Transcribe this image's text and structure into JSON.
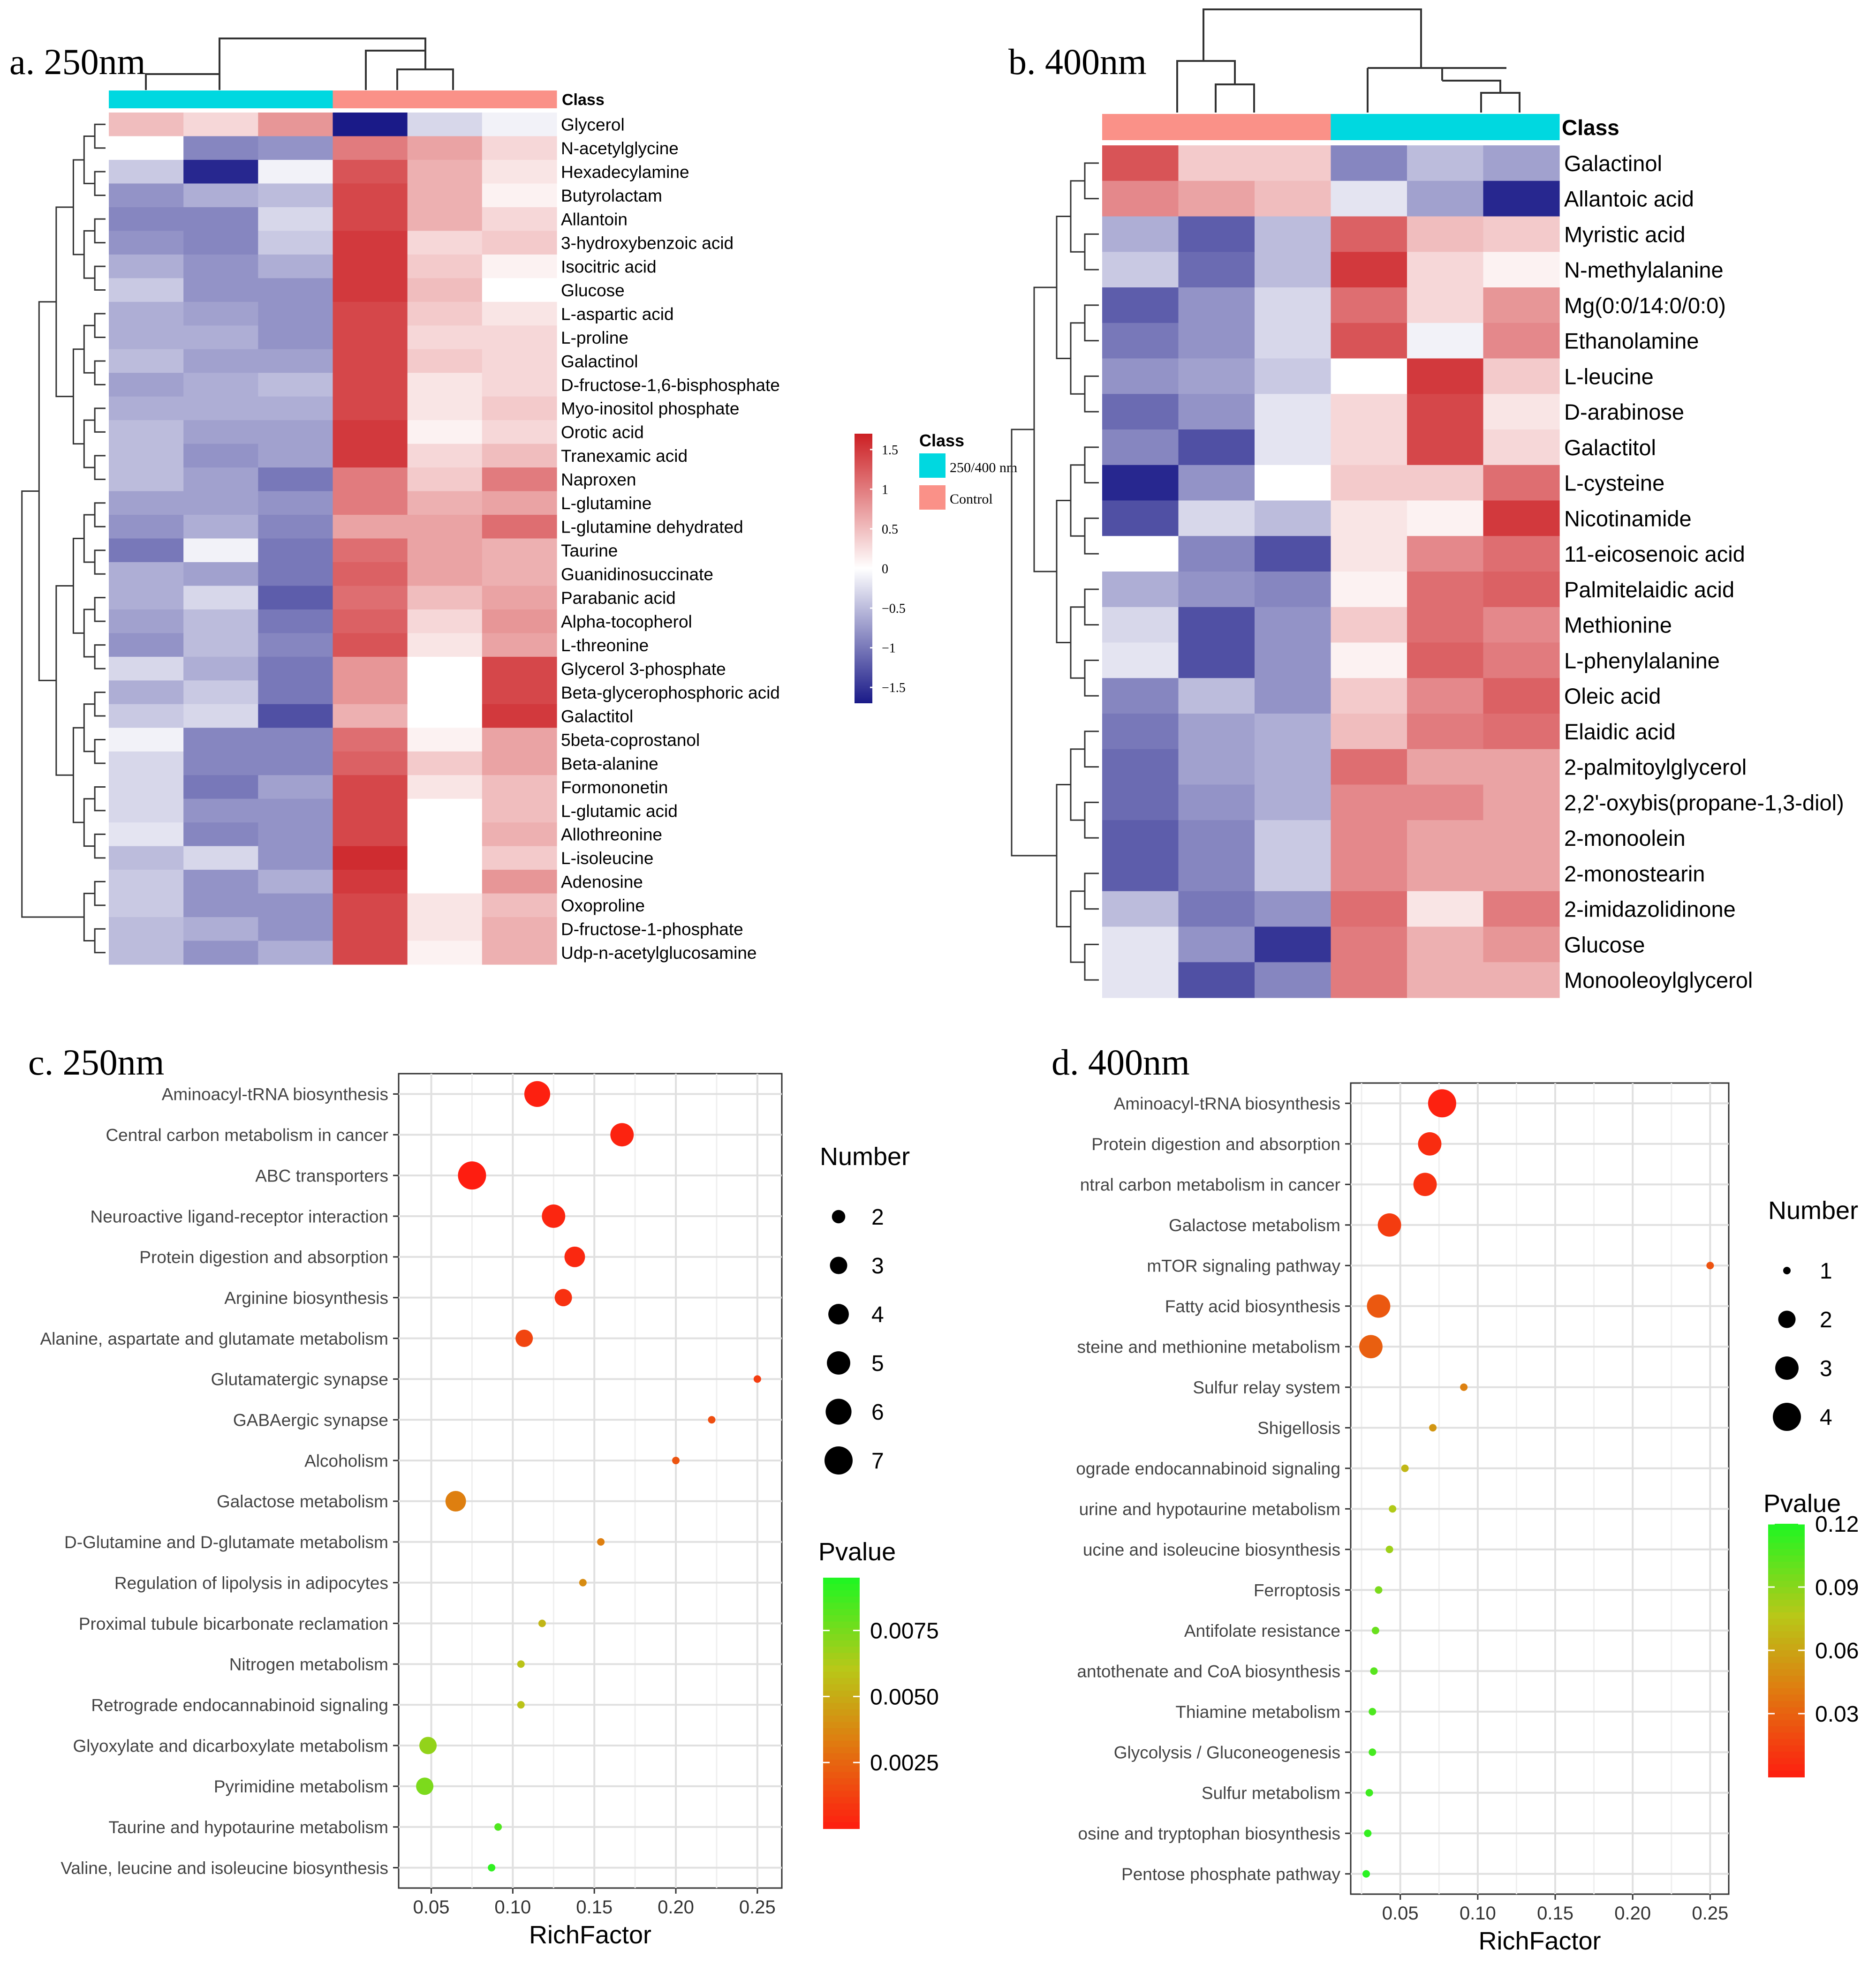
{
  "colors": {
    "accent_cyan": "#00d8e0",
    "accent_salmon": "#fa9188",
    "heat_low": "#1a1a88",
    "heat_mid": "#ffffff",
    "heat_high": "#cc1f23",
    "pv_low": "#ff2a1a",
    "pv_high": "#2af52a"
  },
  "chart_data": [
    {
      "id": "a",
      "type": "heatmap",
      "title": "a. 250nm",
      "class_label": "Class",
      "columns": [
        "col1",
        "col2",
        "col3",
        "col4",
        "col5",
        "col6"
      ],
      "column_class": [
        "250/400 nm",
        "250/400 nm",
        "250/400 nm",
        "Control",
        "Control",
        "Control"
      ],
      "legend": {
        "title": "Class",
        "entries": [
          "250/400 nm",
          "Control"
        ],
        "scale_ticks": [
          "1.5",
          "1",
          "0.5",
          "0",
          "−0.5",
          "−1",
          "−1.5"
        ],
        "scale_range": [
          -1.7,
          1.7
        ]
      },
      "rows": [
        "Glycerol",
        "N-acetylglycine",
        "Hexadecylamine",
        "Butyrolactam",
        "Allantoin",
        "3-hydroxybenzoic acid",
        "Isocitric acid",
        "Glucose",
        "L-aspartic acid",
        "L-proline",
        "Galactinol",
        "D-fructose-1,6-bisphosphate",
        "Myo-inositol phosphate",
        "Orotic acid",
        "Tranexamic acid",
        "Naproxen",
        "L-glutamine",
        "L-glutamine dehydrated",
        "Taurine",
        "Guanidinosuccinate",
        "Parabanic acid",
        "Alpha-tocopherol",
        "L-threonine",
        "Glycerol 3-phosphate",
        "Beta-glycerophosphoric acid",
        "Galactitol",
        "5beta-coprostanol",
        "Beta-alanine",
        "Formononetin",
        "L-glutamic acid",
        "Allothreonine",
        "L-isoleucine",
        "Adenosine",
        "Oxoproline",
        "D-fructose-1-phosphate",
        "Udp-n-acetylglucosamine"
      ],
      "values": [
        [
          0.5,
          0.3,
          0.8,
          -1.7,
          -0.3,
          -0.1
        ],
        [
          0.0,
          -0.9,
          -0.8,
          1.0,
          0.7,
          0.3
        ],
        [
          -0.4,
          -1.6,
          -0.1,
          1.3,
          0.6,
          0.2
        ],
        [
          -0.8,
          -0.6,
          -0.5,
          1.4,
          0.6,
          0.1
        ],
        [
          -0.9,
          -0.9,
          -0.3,
          1.4,
          0.6,
          0.3
        ],
        [
          -0.8,
          -0.9,
          -0.4,
          1.5,
          0.3,
          0.4
        ],
        [
          -0.6,
          -0.8,
          -0.6,
          1.5,
          0.4,
          0.1
        ],
        [
          -0.4,
          -0.8,
          -0.8,
          1.5,
          0.5,
          0.0
        ],
        [
          -0.6,
          -0.7,
          -0.8,
          1.4,
          0.4,
          0.2
        ],
        [
          -0.6,
          -0.6,
          -0.8,
          1.4,
          0.3,
          0.3
        ],
        [
          -0.5,
          -0.7,
          -0.7,
          1.4,
          0.4,
          0.3
        ],
        [
          -0.7,
          -0.6,
          -0.5,
          1.4,
          0.2,
          0.3
        ],
        [
          -0.6,
          -0.6,
          -0.6,
          1.4,
          0.2,
          0.4
        ],
        [
          -0.5,
          -0.7,
          -0.7,
          1.5,
          0.1,
          0.3
        ],
        [
          -0.5,
          -0.8,
          -0.7,
          1.5,
          0.3,
          0.5
        ],
        [
          -0.5,
          -0.7,
          -1.0,
          1.0,
          0.4,
          1.0
        ],
        [
          -0.7,
          -0.7,
          -0.8,
          1.0,
          0.6,
          0.7
        ],
        [
          -0.8,
          -0.6,
          -0.9,
          0.7,
          0.7,
          1.1
        ],
        [
          -1.0,
          -0.1,
          -1.0,
          1.1,
          0.7,
          0.6
        ],
        [
          -0.6,
          -0.7,
          -1.0,
          1.2,
          0.7,
          0.6
        ],
        [
          -0.6,
          -0.3,
          -1.2,
          1.1,
          0.5,
          0.7
        ],
        [
          -0.7,
          -0.5,
          -1.0,
          1.2,
          0.3,
          0.8
        ],
        [
          -0.8,
          -0.5,
          -0.9,
          1.3,
          0.2,
          0.7
        ],
        [
          -0.3,
          -0.6,
          -1.0,
          0.8,
          0.0,
          1.4
        ],
        [
          -0.6,
          -0.4,
          -1.0,
          0.8,
          0.0,
          1.4
        ],
        [
          -0.4,
          -0.3,
          -1.3,
          0.6,
          0.0,
          1.5
        ],
        [
          -0.1,
          -0.9,
          -0.9,
          1.1,
          0.1,
          0.7
        ],
        [
          -0.3,
          -0.9,
          -0.9,
          1.2,
          0.4,
          0.7
        ],
        [
          -0.3,
          -1.0,
          -0.7,
          1.4,
          0.2,
          0.5
        ],
        [
          -0.3,
          -0.8,
          -0.8,
          1.4,
          0.0,
          0.5
        ],
        [
          -0.2,
          -0.9,
          -0.8,
          1.4,
          0.0,
          0.6
        ],
        [
          -0.5,
          -0.3,
          -0.8,
          1.6,
          0.0,
          0.4
        ],
        [
          -0.4,
          -0.8,
          -0.6,
          1.5,
          0.0,
          0.8
        ],
        [
          -0.4,
          -0.8,
          -0.8,
          1.4,
          0.2,
          0.5
        ],
        [
          -0.5,
          -0.6,
          -0.8,
          1.4,
          0.2,
          0.6
        ],
        [
          -0.5,
          -0.8,
          -0.6,
          1.4,
          0.1,
          0.6
        ]
      ]
    },
    {
      "id": "b",
      "type": "heatmap",
      "title": "b. 400nm",
      "class_label": "Class",
      "columns": [
        "col1",
        "col2",
        "col3",
        "col4",
        "col5",
        "col6"
      ],
      "column_class": [
        "Control",
        "Control",
        "Control",
        "250/400 nm",
        "250/400 nm",
        "250/400 nm"
      ],
      "rows": [
        "Galactinol",
        "Allantoic acid",
        "Myristic acid",
        "N-methylalanine",
        "Mg(0:0/14:0/0:0)",
        "Ethanolamine",
        "L-leucine",
        "D-arabinose",
        "Galactitol",
        "L-cysteine",
        "Nicotinamide",
        "11-eicosenoic acid",
        "Palmitelaidic acid",
        "Methionine",
        "L-phenylalanine",
        "Oleic acid",
        "Elaidic acid",
        "2-palmitoylglycerol",
        "2,2'-oxybis(propane-1,3-diol)",
        "2-monoolein",
        "2-monostearin",
        "2-imidazolidinone",
        "Glucose",
        "Monooleoylglycerol"
      ],
      "values": [
        [
          1.3,
          0.4,
          0.4,
          -0.9,
          -0.5,
          -0.7
        ],
        [
          0.9,
          0.7,
          0.5,
          -0.2,
          -0.7,
          -1.6
        ],
        [
          -0.6,
          -1.2,
          -0.5,
          1.2,
          0.5,
          0.4
        ],
        [
          -0.4,
          -1.1,
          -0.5,
          1.5,
          0.3,
          0.1
        ],
        [
          -1.2,
          -0.8,
          -0.3,
          1.1,
          0.3,
          0.8
        ],
        [
          -1.0,
          -0.8,
          -0.3,
          1.3,
          -0.1,
          0.9
        ],
        [
          -0.8,
          -0.7,
          -0.4,
          0.0,
          1.5,
          0.4
        ],
        [
          -1.1,
          -0.8,
          -0.2,
          0.3,
          1.4,
          0.2
        ],
        [
          -0.9,
          -1.3,
          -0.2,
          0.3,
          1.4,
          0.3
        ],
        [
          -1.6,
          -0.8,
          0.0,
          0.4,
          0.4,
          1.1
        ],
        [
          -1.3,
          -0.3,
          -0.5,
          0.2,
          0.1,
          1.5
        ],
        [
          0.0,
          -0.9,
          -1.3,
          0.2,
          0.9,
          1.1
        ],
        [
          -0.6,
          -0.8,
          -0.9,
          0.1,
          1.1,
          1.2
        ],
        [
          -0.3,
          -1.3,
          -0.8,
          0.4,
          1.1,
          0.9
        ],
        [
          -0.2,
          -1.3,
          -0.8,
          0.1,
          1.2,
          1.0
        ],
        [
          -0.9,
          -0.5,
          -0.8,
          0.4,
          0.9,
          1.2
        ],
        [
          -1.0,
          -0.7,
          -0.6,
          0.5,
          1.0,
          1.1
        ],
        [
          -1.1,
          -0.7,
          -0.6,
          1.1,
          0.7,
          0.7
        ],
        [
          -1.1,
          -0.8,
          -0.6,
          0.9,
          0.9,
          0.7
        ],
        [
          -1.2,
          -0.9,
          -0.4,
          0.9,
          0.7,
          0.7
        ],
        [
          -1.2,
          -0.9,
          -0.4,
          0.9,
          0.7,
          0.7
        ],
        [
          -0.5,
          -1.0,
          -0.8,
          1.1,
          0.2,
          1.0
        ],
        [
          -0.2,
          -0.8,
          -1.5,
          1.0,
          0.6,
          0.8
        ],
        [
          -0.2,
          -1.3,
          -0.9,
          1.0,
          0.6,
          0.6
        ]
      ]
    },
    {
      "id": "c",
      "type": "scatter",
      "title": "c. 250nm",
      "xlabel": "RichFactor",
      "ylabel": "",
      "xlim": [
        0.03,
        0.265
      ],
      "xticks": [
        "0.05",
        "0.10",
        "0.15",
        "0.20",
        "0.25"
      ],
      "xtick_values": [
        0.05,
        0.1,
        0.15,
        0.2,
        0.25
      ],
      "grid": true,
      "size_legend": {
        "title": "Number",
        "values": [
          2,
          3,
          4,
          5,
          6,
          7
        ],
        "labels": [
          "2",
          "3",
          "4",
          "5",
          "6",
          "7"
        ],
        "size_range": [
          1,
          7
        ]
      },
      "color_legend": {
        "title": "Pvalue",
        "ticks": [
          "0.0075",
          "0.0050",
          "0.0025"
        ],
        "tick_values": [
          0.0075,
          0.005,
          0.0025
        ],
        "range": [
          0,
          0.0095
        ]
      },
      "pathways": [
        "Aminoacyl-tRNA biosynthesis",
        "Central carbon metabolism in cancer",
        "ABC transporters",
        "Neuroactive ligand-receptor interaction",
        "Protein digestion and absorption",
        "Arginine biosynthesis",
        "Alanine, aspartate and glutamate metabolism",
        "Glutamatergic synapse",
        "GABAergic synapse",
        "Alcoholism",
        "Galactose metabolism",
        "D-Glutamine and D-glutamate metabolism",
        "Regulation of lipolysis in adipocytes",
        "Proximal tubule bicarbonate reclamation",
        "Nitrogen metabolism",
        "Retrograde endocannabinoid signaling",
        "Glyoxylate and dicarboxylate metabolism",
        "Pyrimidine metabolism",
        "Taurine and hypotaurine metabolism",
        "Valine, leucine and isoleucine biosynthesis"
      ],
      "rich_factor": [
        0.115,
        0.167,
        0.075,
        0.125,
        0.138,
        0.131,
        0.107,
        0.25,
        0.222,
        0.2,
        0.065,
        0.154,
        0.143,
        0.118,
        0.105,
        0.105,
        0.048,
        0.046,
        0.091,
        0.087
      ],
      "number": [
        6,
        5,
        7,
        5,
        4,
        3,
        3,
        1,
        1,
        1,
        4,
        1,
        1,
        1,
        1,
        1,
        3,
        3,
        1,
        1
      ],
      "pvalue": [
        0.0002,
        0.0003,
        0.0001,
        0.0004,
        0.0005,
        0.0008,
        0.0015,
        0.0012,
        0.0018,
        0.002,
        0.0035,
        0.0035,
        0.004,
        0.0055,
        0.006,
        0.006,
        0.007,
        0.0075,
        0.0085,
        0.0092
      ]
    },
    {
      "id": "d",
      "type": "scatter",
      "title": "d. 400nm",
      "xlabel": "RichFactor",
      "ylabel": "",
      "xlim": [
        0.018,
        0.262
      ],
      "xticks": [
        "0.05",
        "0.10",
        "0.15",
        "0.20",
        "0.25"
      ],
      "xtick_values": [
        0.05,
        0.1,
        0.15,
        0.2,
        0.25
      ],
      "grid": true,
      "size_legend": {
        "title": "Number",
        "values": [
          1,
          2,
          3,
          4
        ],
        "labels": [
          "1",
          "2",
          "3",
          "4"
        ],
        "size_range": [
          1,
          4
        ]
      },
      "color_legend": {
        "title": "Pvalue",
        "ticks": [
          "0.12",
          "0.09",
          "0.06",
          "0.03"
        ],
        "tick_values": [
          0.12,
          0.09,
          0.06,
          0.03
        ],
        "range": [
          0,
          0.12
        ]
      },
      "pathways": [
        "Aminoacyl-tRNA biosynthesis",
        "Protein digestion and absorption",
        "ntral carbon metabolism in cancer",
        "Galactose metabolism",
        "mTOR signaling pathway",
        "Fatty acid biosynthesis",
        "steine and methionine metabolism",
        "Sulfur relay system",
        "Shigellosis",
        "ograde endocannabinoid signaling",
        "urine and hypotaurine metabolism",
        "ucine and isoleucine biosynthesis",
        "Ferroptosis",
        "Antifolate resistance",
        "antothenate and CoA biosynthesis",
        "Thiamine metabolism",
        "Glycolysis / Gluconeogenesis",
        "Sulfur metabolism",
        "osine and tryptophan biosynthesis",
        "Pentose phosphate pathway"
      ],
      "rich_factor": [
        0.077,
        0.069,
        0.066,
        0.043,
        0.25,
        0.036,
        0.031,
        0.091,
        0.071,
        0.053,
        0.045,
        0.043,
        0.036,
        0.034,
        0.033,
        0.032,
        0.032,
        0.03,
        0.029,
        0.028
      ],
      "number": [
        4,
        3,
        3,
        3,
        1,
        3,
        3,
        1,
        1,
        1,
        1,
        1,
        1,
        1,
        1,
        1,
        1,
        1,
        1,
        1
      ],
      "pvalue": [
        0.003,
        0.008,
        0.01,
        0.015,
        0.025,
        0.027,
        0.03,
        0.045,
        0.055,
        0.07,
        0.08,
        0.085,
        0.095,
        0.1,
        0.105,
        0.108,
        0.11,
        0.112,
        0.115,
        0.118
      ]
    }
  ]
}
